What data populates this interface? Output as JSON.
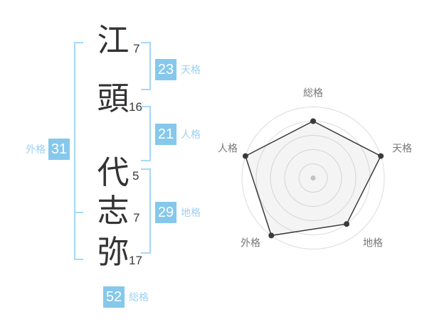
{
  "name": {
    "chars": [
      {
        "char": "江",
        "strokes": "7"
      },
      {
        "char": "頭",
        "strokes": "16"
      },
      {
        "char": "代",
        "strokes": "5"
      },
      {
        "char": "志",
        "strokes": "7"
      },
      {
        "char": "弥",
        "strokes": "17"
      }
    ]
  },
  "categories": {
    "tenkaku": {
      "label": "天格",
      "value": "23"
    },
    "jinkaku": {
      "label": "人格",
      "value": "21"
    },
    "chikaku": {
      "label": "地格",
      "value": "29"
    },
    "gaikaku": {
      "label": "外格",
      "value": "31"
    },
    "soukaku": {
      "label": "総格",
      "value": "52"
    }
  },
  "colors": {
    "badge_blue": "#85C8EC",
    "bracket_blue": "#A6D8F5",
    "label_blue": "#9CD2F3",
    "chart_ring": "#DCDCDC",
    "chart_line": "#3A3A3A",
    "chart_fill": "rgba(130,130,130,0.09)",
    "chart_label": "#787878",
    "center_dot": "#C9C9C9"
  },
  "chart_data": {
    "type": "radar",
    "categories": [
      "総格",
      "天格",
      "地格",
      "外格",
      "人格"
    ],
    "values": [
      4,
      5,
      4,
      5,
      5
    ],
    "max": 5,
    "rings": 5,
    "title": "",
    "legend": false,
    "grid": "circular"
  }
}
